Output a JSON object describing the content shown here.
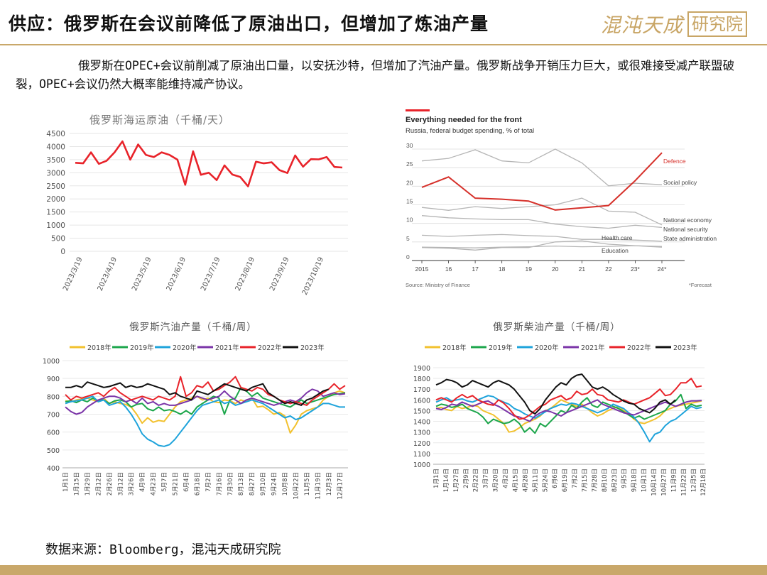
{
  "header": {
    "title": "供应：俄罗斯在会议前降低了原油出口，但增加了炼油产量",
    "logo_text": "混沌天成",
    "logo_box_text": "研究院"
  },
  "description": "俄罗斯在OPEC+会议前削减了原油出口量，以安抚沙特，但增加了汽油产量。俄罗斯战争开销压力巨大，或很难接受减产联盟破裂，OPEC+会议仍然大概率能维持减产协议。",
  "source": "数据来源：Bloomberg，混沌天成研究院",
  "colors": {
    "accent_gold": "#c9a86a",
    "red": "#e8232a",
    "gray": "#b0b0b0"
  },
  "chart_data": [
    {
      "type": "line",
      "title": "俄罗斯海运原油（千桶/天）",
      "ylim": [
        0,
        4500
      ],
      "yticks": [
        0,
        500,
        1000,
        1500,
        2000,
        2500,
        3000,
        3500,
        4000,
        4500
      ],
      "xticks": [
        "2023/3/19",
        "2023/4/19",
        "2023/5/19",
        "2023/6/19",
        "2023/7/19",
        "2023/8/19",
        "2023/9/19",
        "2023/10/19"
      ],
      "series": [
        {
          "color": "#e8232a",
          "values": [
            3380,
            3360,
            3780,
            3340,
            3460,
            3780,
            4200,
            3500,
            4080,
            3680,
            3600,
            3780,
            3680,
            3500,
            2540,
            3820,
            2920,
            3000,
            2720,
            3280,
            2930,
            2840,
            2480,
            3420,
            3360,
            3400,
            3100,
            2990,
            3660,
            3230,
            3520,
            3510,
            3600,
            3220,
            3200
          ]
        }
      ]
    },
    {
      "type": "line",
      "title": "Everything needed for the front",
      "subtitle": "Russia, federal budget spending, % of total",
      "source_note": "Source: Ministry of Finance",
      "forecast_note": "*Forecast",
      "categories": [
        "2015",
        "16",
        "17",
        "18",
        "19",
        "20",
        "21",
        "22",
        "23*",
        "24*"
      ],
      "ylim": [
        0,
        30
      ],
      "yticks": [
        0,
        5,
        10,
        15,
        20,
        25,
        30
      ],
      "series": [
        {
          "name": "Defence",
          "color": "#d6312b",
          "values": [
            19.7,
            22.5,
            16.8,
            16.5,
            16.0,
            13.6,
            14.2,
            14.8,
            21.5,
            29.0
          ]
        },
        {
          "name": "Social policy",
          "color": "#b5b5b5",
          "values": [
            26.8,
            27.5,
            29.8,
            26.8,
            26.3,
            30.0,
            26.3,
            20.1,
            20.8,
            20.4
          ]
        },
        {
          "name": "National economy",
          "color": "#b5b5b5",
          "values": [
            14.3,
            13.5,
            14.5,
            14.0,
            14.5,
            15.0,
            16.8,
            13.3,
            13.0,
            9.6
          ]
        },
        {
          "name": "National security",
          "color": "#b5b5b5",
          "values": [
            12.1,
            11.5,
            11.2,
            11.0,
            11.0,
            9.8,
            9.1,
            8.7,
            9.5,
            8.9
          ]
        },
        {
          "name": "State administration",
          "color": "#b5b5b5",
          "values": [
            6.8,
            6.5,
            6.8,
            7.0,
            6.7,
            6.5,
            5.7,
            5.7,
            5.5,
            5.2
          ]
        },
        {
          "name": "Health care",
          "color": "#b5b5b5",
          "values": [
            3.5,
            3.3,
            2.8,
            3.5,
            3.5,
            5.0,
            5.3,
            4.4,
            4.0,
            3.8
          ]
        },
        {
          "name": "Education",
          "color": "#b5b5b5",
          "values": [
            3.6,
            3.5,
            3.4,
            3.6,
            3.7,
            3.9,
            3.7,
            3.8,
            4.0,
            3.6
          ]
        }
      ]
    },
    {
      "type": "line",
      "title": "俄罗斯汽油产量（千桶/周）",
      "ylim": [
        400,
        1000
      ],
      "yticks": [
        400,
        500,
        600,
        700,
        800,
        900,
        1000
      ],
      "xticks": [
        "1月1日",
        "1月15日",
        "1月29日",
        "2月12日",
        "2月26日",
        "3月12日",
        "3月26日",
        "4月9日",
        "4月23日",
        "5月7日",
        "5月21日",
        "6月4日",
        "6月18日",
        "7月2日",
        "7月16日",
        "7月30日",
        "8月13日",
        "8月27日",
        "9月10日",
        "9月24日",
        "10月8日",
        "10月22日",
        "11月5日",
        "11月19日",
        "12月3日",
        "12月17日"
      ],
      "series": [
        {
          "name": "2018年",
          "color": "#f2c12e",
          "values": [
            775,
            770,
            780,
            785,
            790,
            780,
            770,
            790,
            760,
            770,
            760,
            755,
            740,
            700,
            650,
            680,
            655,
            665,
            660,
            700,
            740,
            770,
            780,
            790,
            800,
            780,
            790,
            770,
            765,
            780,
            775,
            760,
            780,
            770,
            790,
            740,
            745,
            725,
            700,
            710,
            690,
            595,
            640,
            700,
            720,
            730,
            740,
            780,
            800,
            820,
            830,
            820
          ]
        },
        {
          "name": "2019年",
          "color": "#1ca64b",
          "values": [
            770,
            775,
            765,
            780,
            770,
            790,
            775,
            780,
            760,
            775,
            780,
            770,
            740,
            755,
            760,
            730,
            720,
            740,
            720,
            725,
            715,
            700,
            720,
            700,
            740,
            760,
            780,
            800,
            790,
            700,
            780,
            790,
            850,
            830,
            800,
            820,
            790,
            780,
            770,
            760,
            750,
            740,
            760,
            780,
            760,
            770,
            780,
            790,
            800,
            810,
            815,
            820
          ]
        },
        {
          "name": "2020年",
          "color": "#1ea3db",
          "values": [
            760,
            770,
            775,
            780,
            790,
            800,
            770,
            780,
            750,
            760,
            770,
            740,
            700,
            650,
            590,
            560,
            545,
            525,
            520,
            530,
            560,
            600,
            640,
            680,
            720,
            750,
            760,
            770,
            780,
            760,
            770,
            750,
            760,
            770,
            780,
            770,
            760,
            740,
            720,
            700,
            680,
            690,
            670,
            680,
            700,
            720,
            740,
            760,
            760,
            750,
            740,
            740
          ]
        },
        {
          "name": "2021年",
          "color": "#7b35a8",
          "values": [
            740,
            715,
            700,
            710,
            740,
            760,
            780,
            790,
            800,
            800,
            790,
            770,
            780,
            760,
            790,
            760,
            770,
            750,
            760,
            750,
            750,
            760,
            770,
            780,
            800,
            790,
            780,
            790,
            800,
            830,
            800,
            780,
            760,
            780,
            790,
            780,
            770,
            760,
            750,
            760,
            770,
            780,
            770,
            790,
            820,
            840,
            830,
            800,
            810,
            820,
            810,
            815
          ]
        },
        {
          "name": "2022年",
          "color": "#e8232a",
          "values": [
            810,
            780,
            800,
            790,
            800,
            810,
            820,
            800,
            830,
            850,
            820,
            800,
            780,
            790,
            800,
            790,
            780,
            800,
            790,
            780,
            800,
            910,
            800,
            820,
            860,
            850,
            880,
            830,
            840,
            860,
            880,
            910,
            850,
            840,
            830,
            850,
            840,
            810,
            800,
            780,
            770,
            760,
            770,
            760,
            750,
            780,
            800,
            820,
            840,
            870,
            840,
            860
          ]
        },
        {
          "name": "2023年",
          "color": "#111111",
          "values": [
            850,
            850,
            860,
            850,
            880,
            870,
            860,
            850,
            855,
            865,
            875,
            850,
            860,
            850,
            855,
            870,
            860,
            850,
            840,
            810,
            820,
            800,
            790,
            780,
            830,
            820,
            810,
            830,
            850,
            870,
            860,
            850,
            840,
            830,
            850,
            860,
            870,
            820,
            800,
            780,
            760,
            770,
            760,
            750,
            780,
            790,
            810,
            830,
            840
          ]
        }
      ]
    },
    {
      "type": "line",
      "title": "俄罗斯柴油产量（千桶/周）",
      "ylim": [
        1000,
        1900
      ],
      "yticks": [
        1000,
        1100,
        1200,
        1300,
        1400,
        1500,
        1600,
        1700,
        1800,
        1900
      ],
      "xticks": [
        "1月1日",
        "1月14日",
        "1月27日",
        "2月9日",
        "2月22日",
        "3月7日",
        "3月20日",
        "4月2日",
        "4月15日",
        "4月28日",
        "5月11日",
        "5月24日",
        "6月6日",
        "6月19日",
        "7月2日",
        "7月15日",
        "7月28日",
        "8月10日",
        "8月23日",
        "9月5日",
        "9月18日",
        "10月1日",
        "10月14日",
        "10月27日",
        "11月9日",
        "11月22日",
        "12月5日",
        "12月18日"
      ],
      "series": [
        {
          "name": "2018年",
          "color": "#f2c12e",
          "values": [
            1520,
            1530,
            1510,
            1500,
            1540,
            1520,
            1530,
            1550,
            1540,
            1500,
            1480,
            1460,
            1420,
            1380,
            1300,
            1310,
            1340,
            1380,
            1400,
            1420,
            1450,
            1500,
            1520,
            1560,
            1600,
            1580,
            1560,
            1540,
            1560,
            1520,
            1480,
            1450,
            1470,
            1500,
            1520,
            1540,
            1500,
            1470,
            1420,
            1390,
            1380,
            1400,
            1420,
            1450,
            1500,
            1520,
            1540,
            1550,
            1560,
            1570,
            1580,
            1590
          ]
        },
        {
          "name": "2019年",
          "color": "#1ca64b",
          "values": [
            1540,
            1560,
            1550,
            1530,
            1540,
            1560,
            1520,
            1500,
            1480,
            1440,
            1380,
            1420,
            1400,
            1380,
            1390,
            1420,
            1380,
            1300,
            1340,
            1290,
            1380,
            1350,
            1400,
            1450,
            1500,
            1480,
            1550,
            1520,
            1580,
            1620,
            1550,
            1530,
            1580,
            1560,
            1540,
            1520,
            1490,
            1460,
            1430,
            1450,
            1420,
            1440,
            1460,
            1480,
            1500,
            1560,
            1590,
            1650,
            1520,
            1560,
            1540,
            1550
          ]
        },
        {
          "name": "2020年",
          "color": "#1ea3db",
          "values": [
            1580,
            1600,
            1620,
            1590,
            1600,
            1610,
            1590,
            1580,
            1600,
            1620,
            1640,
            1630,
            1600,
            1580,
            1560,
            1520,
            1500,
            1470,
            1450,
            1430,
            1460,
            1490,
            1520,
            1540,
            1560,
            1550,
            1570,
            1560,
            1540,
            1520,
            1500,
            1480,
            1500,
            1520,
            1560,
            1540,
            1520,
            1480,
            1440,
            1380,
            1300,
            1210,
            1280,
            1300,
            1360,
            1400,
            1420,
            1460,
            1500,
            1540,
            1520,
            1530
          ]
        },
        {
          "name": "2021年",
          "color": "#7b35a8",
          "values": [
            1520,
            1510,
            1530,
            1560,
            1550,
            1580,
            1560,
            1540,
            1560,
            1580,
            1590,
            1560,
            1540,
            1510,
            1480,
            1450,
            1440,
            1420,
            1400,
            1450,
            1480,
            1500,
            1490,
            1470,
            1450,
            1480,
            1500,
            1520,
            1540,
            1560,
            1580,
            1600,
            1560,
            1540,
            1520,
            1500,
            1480,
            1470,
            1460,
            1480,
            1500,
            1520,
            1540,
            1560,
            1580,
            1560,
            1540,
            1560,
            1580,
            1590,
            1590,
            1595
          ]
        },
        {
          "name": "2022年",
          "color": "#e8232a",
          "values": [
            1600,
            1620,
            1600,
            1580,
            1620,
            1650,
            1620,
            1640,
            1600,
            1580,
            1560,
            1550,
            1600,
            1570,
            1520,
            1460,
            1420,
            1430,
            1460,
            1500,
            1540,
            1560,
            1600,
            1620,
            1640,
            1600,
            1620,
            1680,
            1650,
            1660,
            1700,
            1650,
            1640,
            1600,
            1590,
            1580,
            1600,
            1580,
            1560,
            1580,
            1600,
            1620,
            1660,
            1700,
            1640,
            1650,
            1700,
            1760,
            1760,
            1800,
            1720,
            1730
          ]
        },
        {
          "name": "2023年",
          "color": "#111111",
          "values": [
            1740,
            1760,
            1790,
            1780,
            1760,
            1720,
            1740,
            1780,
            1760,
            1740,
            1720,
            1760,
            1780,
            1760,
            1740,
            1700,
            1640,
            1580,
            1500,
            1470,
            1520,
            1600,
            1660,
            1720,
            1760,
            1740,
            1800,
            1830,
            1840,
            1780,
            1720,
            1700,
            1720,
            1690,
            1650,
            1620,
            1590,
            1570,
            1560,
            1520,
            1500,
            1480,
            1520,
            1580,
            1600,
            1560,
            1600
          ]
        }
      ]
    }
  ]
}
